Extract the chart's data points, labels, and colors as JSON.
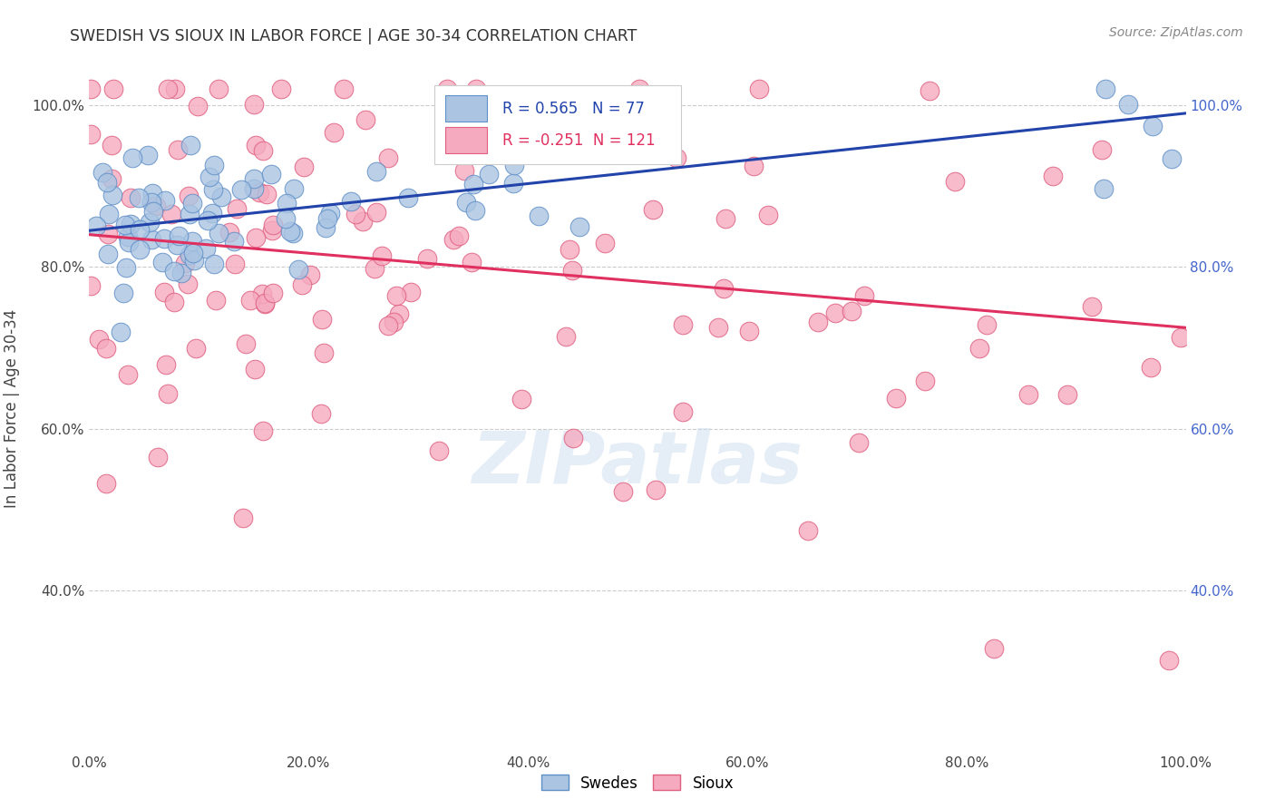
{
  "title": "SWEDISH VS SIOUX IN LABOR FORCE | AGE 30-34 CORRELATION CHART",
  "source": "Source: ZipAtlas.com",
  "ylabel": "In Labor Force | Age 30-34",
  "xlim": [
    0.0,
    1.0
  ],
  "ylim": [
    0.2,
    1.05
  ],
  "xtick_labels": [
    "0.0%",
    "20.0%",
    "40.0%",
    "60.0%",
    "80.0%",
    "100.0%"
  ],
  "xtick_vals": [
    0.0,
    0.2,
    0.4,
    0.6,
    0.8,
    1.0
  ],
  "ytick_labels": [
    "40.0%",
    "60.0%",
    "80.0%",
    "100.0%"
  ],
  "ytick_vals": [
    0.4,
    0.6,
    0.8,
    1.0
  ],
  "swedish_color": "#aac4e2",
  "sioux_color": "#f5aabf",
  "swedish_edge": "#6090c8",
  "sioux_edge": "#e06080",
  "trend_swedish_color": "#2244aa",
  "trend_sioux_color": "#e03060",
  "swedish_R": 0.565,
  "swedish_N": 77,
  "sioux_R": -0.251,
  "sioux_N": 121,
  "legend_labels": [
    "Swedes",
    "Sioux"
  ],
  "watermark": "ZIPatlas",
  "background_color": "#ffffff",
  "grid_color": "#cccccc",
  "right_axis_color": "#4466cc"
}
